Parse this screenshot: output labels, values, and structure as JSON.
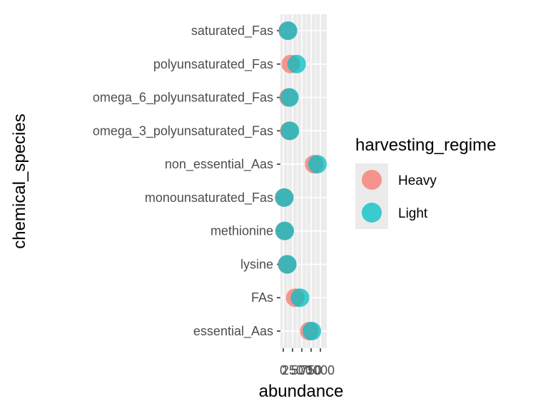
{
  "chart_data": {
    "type": "scatter",
    "xlabel": "abundance",
    "ylabel": "chemical_species",
    "xlim": [
      0,
      1000
    ],
    "x_ticks": [
      0,
      250,
      500,
      750,
      1000
    ],
    "x_tick_labels": [
      "0",
      "250",
      "500",
      "750",
      "1000"
    ],
    "categories": [
      "essential_Aas",
      "FAs",
      "lysine",
      "methionine",
      "monounsaturated_Fas",
      "non_essential_Aas",
      "omega_3_polyunsaturated_Fas",
      "omega_6_polyunsaturated_Fas",
      "polyunsaturated_Fas",
      "saturated_Fas"
    ],
    "grid": true,
    "legend": {
      "title": "harvesting_regime",
      "placement": "right"
    },
    "series": [
      {
        "name": "Heavy",
        "color": "#F8766D",
        "values": [
          700,
          320,
          100,
          30,
          20,
          830,
          160,
          140,
          200,
          120
        ]
      },
      {
        "name": "Light",
        "color": "#00BFC4",
        "values": [
          770,
          450,
          110,
          40,
          30,
          920,
          180,
          170,
          360,
          130
        ]
      }
    ]
  }
}
